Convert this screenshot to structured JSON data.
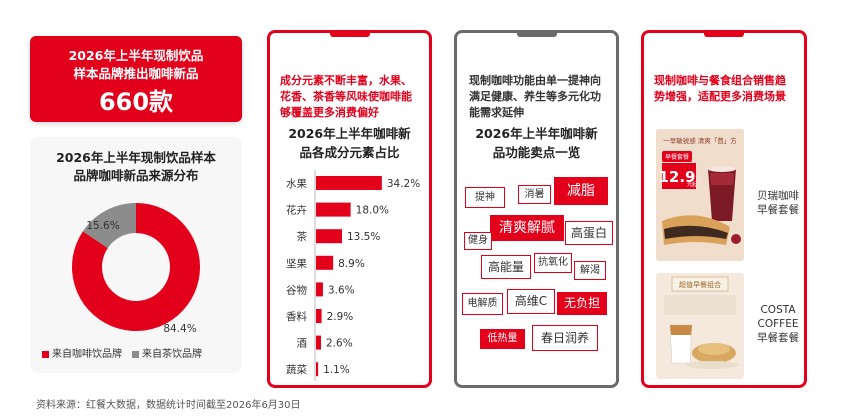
{
  "banner": {
    "line1": "2026年上半年现制饮品",
    "line2": "样本品牌推出咖啡新品",
    "count": "660款"
  },
  "source_panel": {
    "title_line1": "2026年上半年现制饮品样本",
    "title_line2": "品牌咖啡新品来源分布"
  },
  "ingredient_panel": {
    "headline": "成分元素不断丰富，水果、花香、茶香等风味使咖啡能够覆盖更多消费偏好",
    "title_line1": "2026年上半年咖啡新",
    "title_line2": "品各成分元素占比"
  },
  "function_panel": {
    "headline": "现制咖啡功能由单一提神向满足健康、养生等多元化功能需求延伸",
    "title_line1": "2026年上半年咖啡新",
    "title_line2": "品功能卖点一览",
    "tags": [
      "提神",
      "消暑",
      "减脂",
      "清爽解腻",
      "健身",
      "高蛋白",
      "高能量",
      "抗氧化",
      "解渴",
      "电解质",
      "高维C",
      "无负担",
      "低热量",
      "春日润养"
    ]
  },
  "combo_panel": {
    "headline": "现制咖啡与餐食组合销售趋势增强，适配更多消费场景",
    "product1": {
      "brand_line1": "贝瑞咖啡",
      "brand_line2": "早餐套餐",
      "photo_slogan": "一早敏锐感 清爽「茴」方",
      "photo_label": "早餐套餐",
      "photo_price": "12.9",
      "photo_price_unit": "元起"
    },
    "product2": {
      "brand_line1": "COSTA",
      "brand_line2": "COFFEE",
      "brand_line3": "早餐套餐",
      "photo_label": "超值早餐组合"
    }
  },
  "source_note": "资料来源：红餐大数据，数据统计时间截至2026年6月30日",
  "colors": {
    "accent": "#e3001b",
    "grey": "#8c8c8c",
    "frame_grey": "#6b6b6b"
  },
  "chart_data": [
    {
      "type": "pie",
      "donut": true,
      "title": "2026年上半年现制饮品样本品牌咖啡新品来源分布",
      "slices": [
        {
          "name": "来自咖啡饮品牌",
          "value": 84.4,
          "label": "84.4%",
          "color": "#e3001b"
        },
        {
          "name": "来自茶饮品牌",
          "value": 15.6,
          "label": "15.6%",
          "color": "#8c8c8c"
        }
      ],
      "legend": "bottom"
    },
    {
      "type": "bar",
      "orientation": "horizontal",
      "title": "2026年上半年咖啡新品各成分元素占比",
      "categories": [
        "水果",
        "花卉",
        "茶",
        "坚果",
        "谷物",
        "香料",
        "酒",
        "蔬菜"
      ],
      "values": [
        34.2,
        18.0,
        13.5,
        8.9,
        3.6,
        2.9,
        2.6,
        1.1
      ],
      "labels": [
        "34.2%",
        "18.0%",
        "13.5%",
        "8.9%",
        "3.6%",
        "2.9%",
        "2.6%",
        "1.1%"
      ],
      "color": "#e3001b",
      "xlim": [
        0,
        40
      ]
    }
  ]
}
